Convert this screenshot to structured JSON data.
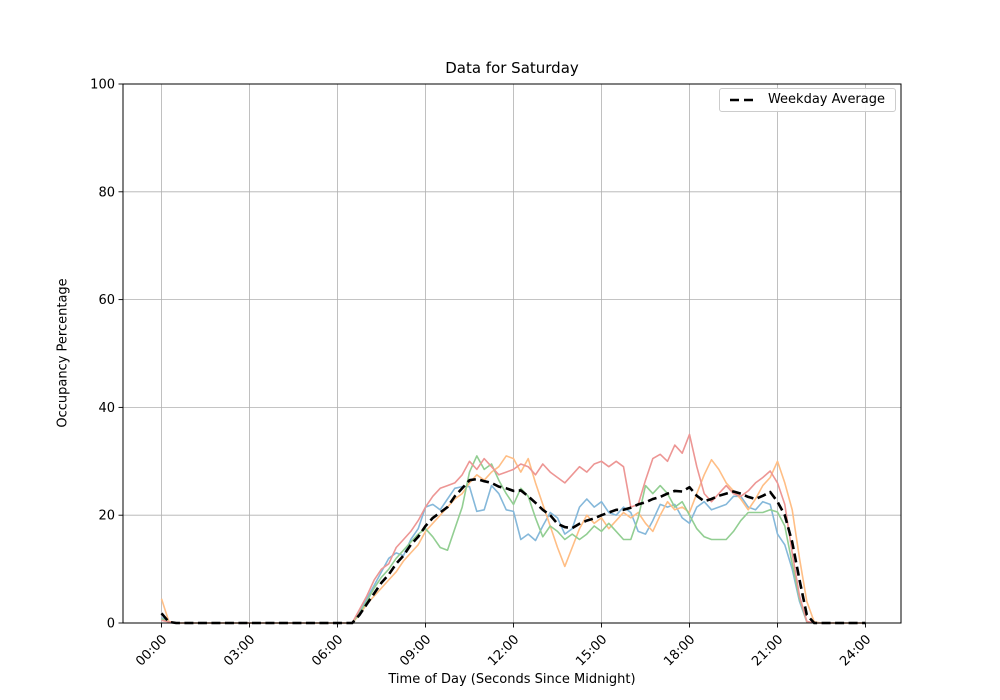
{
  "figure": {
    "background": "#ffffff"
  },
  "chart_data": {
    "type": "line",
    "title": "Data for Saturday",
    "xlabel": "Time of Day (Seconds Since Midnight)",
    "ylabel": "Occupancy Percentage",
    "ylim": [
      0,
      100
    ],
    "y_ticks": [
      0,
      20,
      40,
      60,
      80,
      100
    ],
    "x_ticks": [
      {
        "hour": 0,
        "label": "00:00"
      },
      {
        "hour": 3,
        "label": "03:00"
      },
      {
        "hour": 6,
        "label": "06:00"
      },
      {
        "hour": 9,
        "label": "09:00"
      },
      {
        "hour": 12,
        "label": "12:00"
      },
      {
        "hour": 15,
        "label": "15:00"
      },
      {
        "hour": 18,
        "label": "18:00"
      },
      {
        "hour": 21,
        "label": "21:00"
      },
      {
        "hour": 24,
        "label": "24:00"
      }
    ],
    "grid": true,
    "grid_color": "#b0b0b0",
    "x_start_hour": 0,
    "x_step_hours": 0.25,
    "legend": {
      "position": "upper right",
      "entries": [
        {
          "label": "Weekday Average",
          "line_style": "dashed",
          "color": "#000000"
        }
      ]
    },
    "series": [
      {
        "name": "saturday-sample-blue",
        "color": "#85b8da",
        "line_style": "solid",
        "line_width": 1.6,
        "values": [
          1,
          0.2,
          0,
          0,
          0,
          0,
          0,
          0,
          0,
          0,
          0,
          0,
          0,
          0,
          0,
          0,
          0,
          0,
          0,
          0,
          0,
          0,
          0,
          0,
          0,
          0,
          0,
          2,
          4.5,
          7,
          9.5,
          12,
          13,
          12.5,
          15.5,
          17.5,
          21.5,
          22,
          21,
          23,
          25,
          25.3,
          25.3,
          20.7,
          21,
          25.5,
          24,
          21,
          20.7,
          15.5,
          16.5,
          15.3,
          18,
          20.5,
          19.5,
          16.5,
          17.5,
          21.5,
          23,
          21.5,
          22.5,
          20.5,
          20,
          21.5,
          20.5,
          17,
          16.5,
          19,
          22,
          21.5,
          22,
          19.5,
          18.5,
          21.5,
          22.5,
          21,
          21.5,
          22,
          23.5,
          23.5,
          21.5,
          21,
          22.5,
          22,
          16.5,
          14.5,
          10,
          4,
          0.2,
          0,
          0,
          0,
          0,
          0,
          0,
          0,
          0
        ]
      },
      {
        "name": "saturday-sample-orange",
        "color": "#ffbe85",
        "line_style": "solid",
        "line_width": 1.6,
        "values": [
          4.5,
          0.3,
          0,
          0,
          0,
          0,
          0,
          0,
          0,
          0,
          0,
          0,
          0,
          0,
          0,
          0,
          0,
          0,
          0,
          0,
          0,
          0,
          0,
          0,
          0,
          0,
          0,
          1.5,
          3.5,
          5,
          6.5,
          8,
          9.5,
          11.5,
          13,
          14.5,
          17,
          18.5,
          20,
          21.5,
          23,
          24,
          26,
          27.5,
          26.5,
          28,
          29,
          31,
          30.5,
          28,
          30.5,
          26,
          22,
          18,
          14,
          10.5,
          14,
          17.5,
          20,
          18.5,
          19.5,
          17.5,
          19,
          20.5,
          19.5,
          20.5,
          18.5,
          17,
          20,
          22.5,
          21,
          21.5,
          20.5,
          24,
          27.5,
          30.3,
          28.5,
          26,
          24.5,
          23,
          21,
          23,
          25.5,
          27,
          30,
          26,
          21,
          12,
          4,
          0.2,
          0,
          0,
          0,
          0,
          0,
          0,
          0
        ]
      },
      {
        "name": "saturday-sample-green",
        "color": "#92ce92",
        "line_style": "solid",
        "line_width": 1.6,
        "values": [
          0.8,
          0.2,
          0,
          0,
          0,
          0,
          0,
          0,
          0,
          0,
          0,
          0,
          0,
          0,
          0,
          0,
          0,
          0,
          0,
          0,
          0,
          0,
          0,
          0,
          0,
          0,
          0,
          1.8,
          4,
          6.5,
          8.5,
          10,
          12,
          13.5,
          15,
          16.5,
          17.5,
          16,
          14,
          13.5,
          17.5,
          21.5,
          28,
          31,
          28.5,
          29.5,
          26.5,
          24,
          22,
          25,
          23.5,
          19.5,
          16,
          18,
          17,
          15.5,
          16.5,
          15.5,
          16.5,
          18,
          17,
          18.5,
          17,
          15.5,
          15.5,
          19.5,
          25.5,
          24,
          25.5,
          24,
          21.5,
          22.5,
          20,
          17.5,
          16,
          15.5,
          15.5,
          15.5,
          17,
          19,
          20.5,
          20.5,
          20.5,
          21,
          20.6,
          18,
          11,
          4.5,
          0.2,
          0,
          0,
          0,
          0,
          0,
          0,
          0,
          0
        ]
      },
      {
        "name": "saturday-sample-red",
        "color": "#ed9694",
        "line_style": "solid",
        "line_width": 1.6,
        "values": [
          0.5,
          0.2,
          0,
          0,
          0,
          0,
          0,
          0,
          0,
          0,
          0,
          0,
          0,
          0,
          0,
          0,
          0,
          0,
          0,
          0,
          0,
          0,
          0,
          0,
          0,
          0,
          0,
          2.5,
          5,
          8,
          10,
          11,
          14,
          15.5,
          17,
          19,
          21.5,
          23.5,
          25,
          25.5,
          26,
          27.5,
          30,
          28.5,
          30.5,
          29,
          27.5,
          28,
          28.5,
          29.5,
          29,
          27.5,
          29.5,
          28,
          27,
          26,
          27.5,
          29,
          28,
          29.5,
          30,
          29,
          30,
          29,
          21.5,
          22,
          26.5,
          30.5,
          31.3,
          30,
          33,
          31.5,
          35,
          29,
          24,
          22.5,
          24,
          25.5,
          24,
          23.5,
          24.5,
          26,
          27,
          28.2,
          26,
          22,
          13,
          5,
          0.3,
          0,
          0,
          0,
          0,
          0,
          0,
          0,
          0
        ]
      },
      {
        "name": "weekday-average",
        "color": "#000000",
        "line_style": "dashed",
        "line_width": 2.6,
        "values": [
          1.8,
          0.2,
          0,
          0,
          0,
          0,
          0,
          0,
          0,
          0,
          0,
          0,
          0,
          0,
          0,
          0,
          0,
          0,
          0,
          0,
          0,
          0,
          0,
          0,
          0,
          0,
          0,
          1.5,
          3.5,
          5.5,
          7.5,
          9,
          11,
          12.5,
          14.5,
          16,
          18,
          19.5,
          20.5,
          21.5,
          23.5,
          25,
          26.5,
          26.7,
          26.3,
          26,
          25.3,
          25,
          24.5,
          24.6,
          23.5,
          22.3,
          21,
          20,
          18.4,
          17.8,
          17.6,
          18.4,
          19,
          19.4,
          20,
          20.5,
          21,
          21,
          21.4,
          22,
          22.4,
          23,
          23.4,
          24,
          24.5,
          24.4,
          25.2,
          23.6,
          22.6,
          23,
          23.6,
          24,
          24.4,
          24,
          23.4,
          23,
          23.6,
          24.3,
          22.5,
          20,
          15,
          8,
          1.5,
          0,
          0,
          0,
          0,
          0,
          0,
          0,
          0
        ]
      }
    ]
  }
}
